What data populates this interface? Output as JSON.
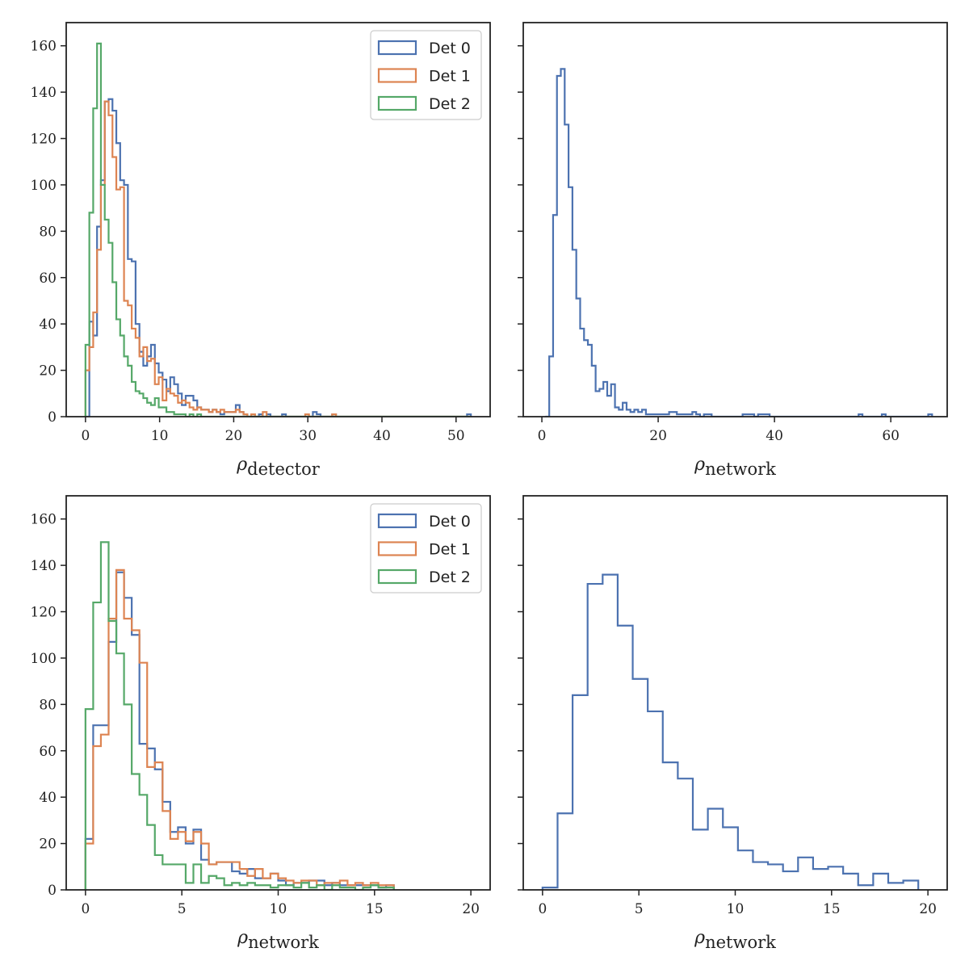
{
  "chart_data": [
    {
      "type": "histogram",
      "panel": "top-left",
      "xlabel": {
        "symbol": "ρ",
        "sub": "detector"
      },
      "xlim": [
        -2.6,
        54.6
      ],
      "ylim": [
        0,
        170
      ],
      "xticks": [
        0,
        10,
        20,
        30,
        40,
        50
      ],
      "yticks": [
        0,
        20,
        40,
        60,
        80,
        100,
        120,
        140,
        160
      ],
      "ytick_labels_shown": true,
      "legend": {
        "placement": "top-right"
      },
      "bin_start": 0,
      "bin_width": 0.52,
      "series": [
        {
          "name": "Det 0",
          "color": "#4c72b0",
          "values": [
            0,
            41,
            35,
            82,
            102,
            136,
            137,
            132,
            118,
            102,
            100,
            68,
            67,
            40,
            28,
            22,
            26,
            31,
            23,
            19,
            16,
            11,
            17,
            14,
            10,
            5,
            9,
            9,
            7,
            4,
            3,
            3,
            2,
            3,
            2,
            1,
            2,
            2,
            2,
            5,
            2,
            1,
            0,
            0,
            0,
            1,
            0,
            1,
            0,
            0,
            0,
            1,
            0,
            0,
            0,
            0,
            0,
            0,
            0,
            2,
            1,
            0,
            0,
            0,
            1,
            0,
            0,
            0,
            0,
            0,
            0,
            0,
            0,
            0,
            0,
            0,
            0,
            0,
            0,
            0,
            0,
            0,
            0,
            0,
            0,
            0,
            0,
            0,
            0,
            0,
            0,
            0,
            0,
            0,
            0,
            0,
            0,
            0,
            0,
            1
          ]
        },
        {
          "name": "Det 1",
          "color": "#dd8452",
          "values": [
            20,
            30,
            45,
            72,
            100,
            136,
            130,
            112,
            98,
            99,
            50,
            48,
            38,
            34,
            26,
            30,
            24,
            25,
            14,
            17,
            7,
            12,
            10,
            9,
            6,
            7,
            6,
            4,
            3,
            4,
            3,
            3,
            2,
            3,
            2,
            3,
            2,
            2,
            2,
            3,
            2,
            1,
            0,
            1,
            0,
            0,
            2,
            0,
            0,
            0,
            0,
            0,
            0,
            0,
            0,
            0,
            0,
            1,
            0,
            0,
            0,
            0,
            0,
            0,
            1,
            0,
            0,
            0,
            0,
            0,
            0,
            0,
            0,
            0,
            0,
            0,
            0,
            0,
            0,
            0,
            0,
            0,
            0,
            0,
            0,
            0,
            0,
            0,
            0,
            0,
            0,
            0,
            0,
            0,
            0,
            0,
            0,
            0,
            0,
            0
          ]
        },
        {
          "name": "Det 2",
          "color": "#55a868",
          "values": [
            31,
            88,
            133,
            161,
            100,
            85,
            75,
            58,
            42,
            35,
            26,
            22,
            15,
            11,
            10,
            8,
            6,
            5,
            8,
            4,
            4,
            2,
            2,
            1,
            1,
            1,
            0,
            1,
            0,
            1,
            0,
            0,
            0,
            0,
            0,
            0,
            0,
            0,
            0,
            0,
            0,
            0,
            0,
            0,
            0,
            0,
            0,
            0,
            0,
            0,
            0,
            0,
            0,
            0,
            0,
            0,
            0,
            0,
            0,
            0,
            0,
            0,
            0,
            0,
            0,
            0,
            0,
            0,
            0,
            0,
            0,
            0,
            0,
            0,
            0,
            0,
            0,
            0,
            0,
            0,
            0,
            0,
            0,
            0,
            0,
            0,
            0,
            0,
            0,
            0,
            0,
            0,
            0,
            0,
            0,
            0,
            0,
            0,
            0,
            0
          ]
        }
      ]
    },
    {
      "type": "histogram",
      "panel": "top-right",
      "xlabel": {
        "symbol": "ρ",
        "sub": "network"
      },
      "xlim": [
        -3.2,
        69.7
      ],
      "ylim": [
        0,
        170
      ],
      "xticks": [
        0,
        20,
        40,
        60
      ],
      "yticks": [
        0,
        20,
        40,
        60,
        80,
        100,
        120,
        140,
        160
      ],
      "ytick_labels_shown": false,
      "bin_start": 0.6,
      "bin_width": 0.665,
      "series": [
        {
          "name": "",
          "color": "#4c72b0",
          "values": [
            0,
            26,
            87,
            147,
            150,
            126,
            99,
            72,
            51,
            38,
            33,
            31,
            22,
            11,
            12,
            15,
            9,
            14,
            4,
            3,
            6,
            3,
            2,
            3,
            2,
            3,
            1,
            1,
            1,
            1,
            1,
            1,
            2,
            2,
            1,
            1,
            1,
            1,
            2,
            1,
            0,
            1,
            1,
            0,
            0,
            0,
            0,
            0,
            0,
            0,
            0,
            1,
            1,
            1,
            0,
            1,
            1,
            1,
            0,
            0,
            0,
            0,
            0,
            0,
            0,
            0,
            0,
            0,
            0,
            0,
            0,
            0,
            0,
            0,
            0,
            0,
            0,
            0,
            0,
            0,
            0,
            1,
            0,
            0,
            0,
            0,
            0,
            1,
            0,
            0,
            0,
            0,
            0,
            0,
            0,
            0,
            0,
            0,
            0,
            1
          ]
        }
      ]
    },
    {
      "type": "histogram",
      "panel": "bottom-left",
      "xlabel": {
        "symbol": "ρ",
        "sub": "network"
      },
      "xlim": [
        -1,
        21
      ],
      "ylim": [
        0,
        170
      ],
      "xticks": [
        0,
        5,
        10,
        15,
        20
      ],
      "yticks": [
        0,
        20,
        40,
        60,
        80,
        100,
        120,
        140,
        160
      ],
      "ytick_labels_shown": true,
      "legend": {
        "placement": "top-right"
      },
      "bin_start": 0,
      "bin_width": 0.4,
      "series": [
        {
          "name": "Det 0",
          "color": "#4c72b0",
          "values": [
            22,
            71,
            71,
            107,
            137,
            126,
            110,
            63,
            61,
            52,
            38,
            25,
            27,
            20,
            26,
            13,
            11,
            12,
            12,
            8,
            7,
            9,
            5,
            5,
            7,
            4,
            2,
            3,
            3,
            4,
            4,
            2,
            3,
            2,
            2,
            2,
            2,
            2,
            1,
            2
          ]
        },
        {
          "name": "Det 1",
          "color": "#dd8452",
          "values": [
            20,
            62,
            67,
            117,
            138,
            117,
            112,
            98,
            53,
            55,
            34,
            22,
            25,
            21,
            25,
            20,
            11,
            12,
            12,
            12,
            9,
            6,
            9,
            5,
            7,
            5,
            4,
            3,
            4,
            4,
            2,
            3,
            3,
            4,
            2,
            3,
            2,
            3,
            2,
            2
          ]
        },
        {
          "name": "Det 2",
          "color": "#55a868",
          "values": [
            78,
            124,
            150,
            116,
            102,
            80,
            50,
            41,
            28,
            15,
            11,
            11,
            11,
            3,
            11,
            3,
            6,
            5,
            2,
            3,
            2,
            3,
            2,
            2,
            1,
            2,
            2,
            1,
            3,
            1,
            2,
            0,
            2,
            1,
            1,
            0,
            1,
            2,
            1,
            1
          ]
        }
      ]
    },
    {
      "type": "histogram",
      "panel": "bottom-right",
      "xlabel": {
        "symbol": "ρ",
        "sub": "network"
      },
      "xlim": [
        -1,
        21
      ],
      "ylim": [
        0,
        170
      ],
      "xticks": [
        0,
        5,
        10,
        15,
        20
      ],
      "yticks": [
        0,
        20,
        40,
        60,
        80,
        100,
        120,
        140,
        160
      ],
      "ytick_labels_shown": false,
      "bin_start": 0,
      "bin_width": 0.78,
      "series": [
        {
          "name": "",
          "color": "#4c72b0",
          "values": [
            1,
            33,
            84,
            132,
            136,
            114,
            91,
            77,
            55,
            48,
            26,
            35,
            27,
            17,
            12,
            11,
            8,
            14,
            9,
            10,
            7,
            2,
            7,
            3,
            4
          ]
        }
      ]
    }
  ]
}
